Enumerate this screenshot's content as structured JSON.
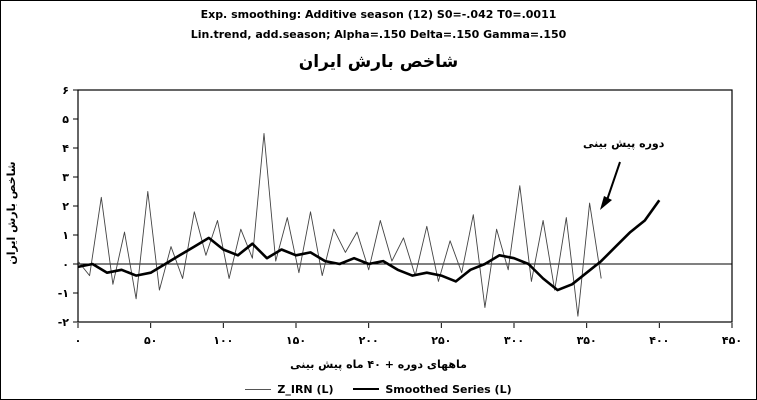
{
  "chart_data": {
    "type": "line",
    "title_line1": "Exp. smoothing: Additive season (12) S0=-.042 T0=.0011",
    "title_line2": "Lin.trend, add.season; Alpha=.150 Delta=.150 Gamma=.150",
    "title": "شاخص بارش ایران",
    "xlabel": "ماههای دوره + ۴۰ ماه پیش بینی",
    "ylabel": "شاخص بارش ایران",
    "annotation": "دوره پیش بینی",
    "xlim": [
      0,
      450
    ],
    "ylim": [
      -2,
      6
    ],
    "x_ticks": [
      "۰",
      "۵۰",
      "۱۰۰",
      "۱۵۰",
      "۲۰۰",
      "۲۵۰",
      "۳۰۰",
      "۳۵۰",
      "۴۰۰",
      "۴۵۰"
    ],
    "y_ticks": [
      "-۲",
      "-۱",
      "۰",
      "۱",
      "۲",
      "۳",
      "۴",
      "۵",
      "۶"
    ],
    "legend_position": "bottom",
    "grid": false,
    "series": [
      {
        "name": "Z_IRN (L)",
        "x": [
          0,
          8,
          16,
          24,
          32,
          40,
          48,
          56,
          64,
          72,
          80,
          88,
          96,
          104,
          112,
          120,
          128,
          136,
          144,
          152,
          160,
          168,
          176,
          184,
          192,
          200,
          208,
          216,
          224,
          232,
          240,
          248,
          256,
          264,
          272,
          280,
          288,
          296,
          304,
          312,
          320,
          328,
          336,
          344,
          352,
          360
        ],
        "y": [
          0.1,
          -0.4,
          2.3,
          -0.7,
          1.1,
          -1.2,
          2.5,
          -0.9,
          0.6,
          -0.5,
          1.8,
          0.3,
          1.5,
          -0.5,
          1.2,
          0.2,
          4.5,
          0.1,
          1.6,
          -0.3,
          1.8,
          -0.4,
          1.2,
          0.4,
          1.1,
          -0.2,
          1.5,
          0.1,
          0.9,
          -0.4,
          1.3,
          -0.6,
          0.8,
          -0.3,
          1.7,
          -1.5,
          1.2,
          -0.2,
          2.7,
          -0.6,
          1.5,
          -0.9,
          1.6,
          -1.8,
          2.1,
          -0.5
        ]
      },
      {
        "name": "Smoothed Series (L)",
        "x": [
          0,
          10,
          20,
          30,
          40,
          50,
          60,
          70,
          80,
          90,
          100,
          110,
          120,
          130,
          140,
          150,
          160,
          170,
          180,
          190,
          200,
          210,
          220,
          230,
          240,
          250,
          260,
          270,
          280,
          290,
          300,
          310,
          320,
          330,
          340,
          350,
          360,
          370,
          380,
          390,
          400
        ],
        "y": [
          -0.1,
          0.0,
          -0.3,
          -0.2,
          -0.4,
          -0.3,
          0.0,
          0.3,
          0.6,
          0.9,
          0.5,
          0.3,
          0.7,
          0.2,
          0.5,
          0.3,
          0.4,
          0.1,
          0.0,
          0.2,
          0.0,
          0.1,
          -0.2,
          -0.4,
          -0.3,
          -0.4,
          -0.6,
          -0.2,
          0.0,
          0.3,
          0.2,
          0.0,
          -0.5,
          -0.9,
          -0.7,
          -0.3,
          0.1,
          0.6,
          1.1,
          1.5,
          2.2
        ]
      }
    ]
  }
}
